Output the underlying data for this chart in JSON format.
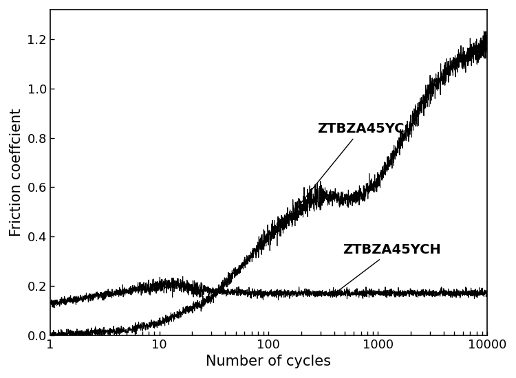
{
  "title": "",
  "xlabel": "Number of cycles",
  "ylabel": "Friction coeffcient",
  "xlim": [
    1,
    10000
  ],
  "ylim": [
    0.0,
    1.32
  ],
  "yticks": [
    0.0,
    0.2,
    0.4,
    0.6,
    0.8,
    1.0,
    1.2
  ],
  "line_color": "#000000",
  "background_color": "#ffffff",
  "label_ZTBZA45YC": "ZTBZA45YC",
  "label_ZTBZA45YCH": "ZTBZA45YCH",
  "font_size_label": 15,
  "font_size_annot": 14,
  "font_size_tick": 13
}
